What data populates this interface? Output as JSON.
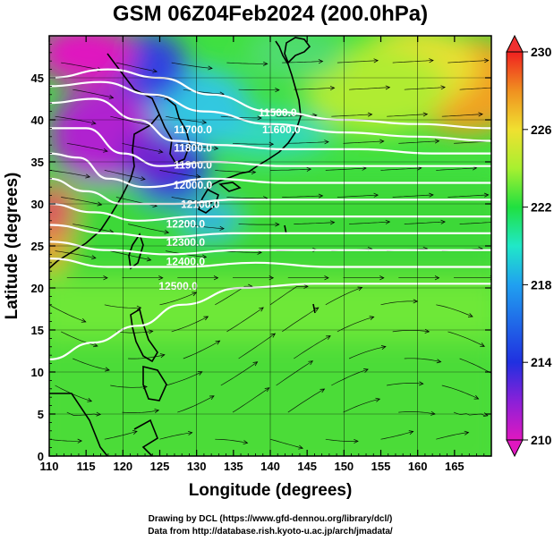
{
  "title": "GSM 06Z04Feb2024 (200.0hPa)",
  "chart_data": {
    "type": "heatmap",
    "xlabel": "Longitude (degrees)",
    "ylabel": "Latitude (degrees)",
    "xlim": [
      110,
      170
    ],
    "ylim": [
      0,
      50
    ],
    "x_ticks": [
      "110",
      "115",
      "120",
      "125",
      "130",
      "135",
      "140",
      "145",
      "150",
      "155",
      "160",
      "165"
    ],
    "y_ticks": [
      "0",
      "5",
      "10",
      "15",
      "20",
      "25",
      "30",
      "35",
      "40",
      "45"
    ],
    "shading_quantity_range": [
      210,
      230
    ],
    "colorbar_ticks": [
      "230",
      "226",
      "222",
      "218",
      "214",
      "210"
    ],
    "colorbar_stops": [
      "#e018c0",
      "#8a20d8",
      "#2030e0",
      "#20a0f0",
      "#20e8c8",
      "#20e040",
      "#a8f030",
      "#f0e030",
      "#f09020",
      "#f02020"
    ],
    "contours": [
      {
        "label": "11500.0",
        "points": [
          [
            110,
            45
          ],
          [
            118,
            46
          ],
          [
            125,
            45
          ],
          [
            132,
            43
          ],
          [
            140,
            41
          ],
          [
            150,
            40
          ],
          [
            160,
            39.5
          ],
          [
            170,
            39
          ]
        ]
      },
      {
        "label": "11600.0",
        "points": [
          [
            110,
            44
          ],
          [
            117,
            44.5
          ],
          [
            124,
            43
          ],
          [
            131,
            41
          ],
          [
            140,
            39.5
          ],
          [
            150,
            38.5
          ],
          [
            160,
            38
          ],
          [
            170,
            37.5
          ]
        ]
      },
      {
        "label": "11700.0",
        "points": [
          [
            110,
            42
          ],
          [
            116,
            42.5
          ],
          [
            122,
            40
          ],
          [
            127,
            37.5
          ],
          [
            133,
            37
          ],
          [
            142,
            36.5
          ],
          [
            152,
            36.5
          ],
          [
            162,
            36
          ],
          [
            170,
            36
          ]
        ]
      },
      {
        "label": "11800.0",
        "points": [
          [
            110,
            39
          ],
          [
            115,
            39
          ],
          [
            120,
            36
          ],
          [
            125,
            34.5
          ],
          [
            132,
            35
          ],
          [
            142,
            34.5
          ],
          [
            152,
            34.5
          ],
          [
            162,
            34.5
          ],
          [
            170,
            34.5
          ]
        ]
      },
      {
        "label": "11900.0",
        "points": [
          [
            110,
            36
          ],
          [
            114,
            35.5
          ],
          [
            118,
            33
          ],
          [
            123,
            32
          ],
          [
            132,
            33
          ],
          [
            142,
            32.5
          ],
          [
            152,
            32.5
          ],
          [
            162,
            32.5
          ],
          [
            170,
            32.5
          ]
        ]
      },
      {
        "label": "12000.0",
        "points": [
          [
            110,
            33
          ],
          [
            115,
            31.5
          ],
          [
            120,
            30
          ],
          [
            127,
            30
          ],
          [
            135,
            30.5
          ],
          [
            145,
            30.5
          ],
          [
            155,
            30.5
          ],
          [
            170,
            30.5
          ]
        ]
      },
      {
        "label": "12100.0",
        "points": [
          [
            110,
            30
          ],
          [
            116,
            29
          ],
          [
            122,
            28
          ],
          [
            130,
            28.5
          ],
          [
            140,
            28.5
          ],
          [
            150,
            28.5
          ],
          [
            160,
            28.5
          ],
          [
            170,
            28.5
          ]
        ]
      },
      {
        "label": "12200.0",
        "points": [
          [
            110,
            27.5
          ],
          [
            118,
            26.5
          ],
          [
            125,
            26
          ],
          [
            135,
            26.5
          ],
          [
            145,
            26.5
          ],
          [
            155,
            26.5
          ],
          [
            170,
            26.5
          ]
        ]
      },
      {
        "label": "12300.0",
        "points": [
          [
            110,
            25.5
          ],
          [
            118,
            24.5
          ],
          [
            126,
            24
          ],
          [
            136,
            24.5
          ],
          [
            146,
            24.5
          ],
          [
            156,
            24.5
          ],
          [
            170,
            24.5
          ]
        ]
      },
      {
        "label": "12400.0",
        "points": [
          [
            110,
            23.5
          ],
          [
            118,
            22.5
          ],
          [
            128,
            22.5
          ],
          [
            138,
            23
          ],
          [
            148,
            22.5
          ],
          [
            158,
            22.5
          ],
          [
            170,
            22.5
          ]
        ]
      },
      {
        "label": "12500.0",
        "points": [
          [
            110,
            11.5
          ],
          [
            116,
            13.5
          ],
          [
            122,
            15.5
          ],
          [
            128,
            18
          ],
          [
            136,
            20
          ],
          [
            146,
            20.5
          ],
          [
            156,
            20.5
          ],
          [
            170,
            20.5
          ]
        ]
      }
    ],
    "contour_labels": [
      {
        "text": "11500.0",
        "lon": 141,
        "lat": 40.4
      },
      {
        "text": "11600.0",
        "lon": 141.5,
        "lat": 38.4
      },
      {
        "text": "11700.0",
        "lon": 129.5,
        "lat": 38.4
      },
      {
        "text": "11800.0",
        "lon": 129.5,
        "lat": 36.2
      },
      {
        "text": "11900.0",
        "lon": 129.5,
        "lat": 34.2
      },
      {
        "text": "12000.0",
        "lon": 129.5,
        "lat": 31.8
      },
      {
        "text": "12100.0",
        "lon": 130.5,
        "lat": 29.5
      },
      {
        "text": "12200.0",
        "lon": 128.5,
        "lat": 27.2
      },
      {
        "text": "12300.0",
        "lon": 128.5,
        "lat": 25.0
      },
      {
        "text": "12400.0",
        "lon": 128.5,
        "lat": 22.7
      },
      {
        "text": "12500.0",
        "lon": 127.5,
        "lat": 19.8
      }
    ]
  },
  "credits": {
    "line1": "Drawing by DCL (https://www.gfd-dennou.org/library/dcl/)",
    "line2": "Data from http://database.rish.kyoto-u.ac.jp/arch/jmadata/"
  }
}
